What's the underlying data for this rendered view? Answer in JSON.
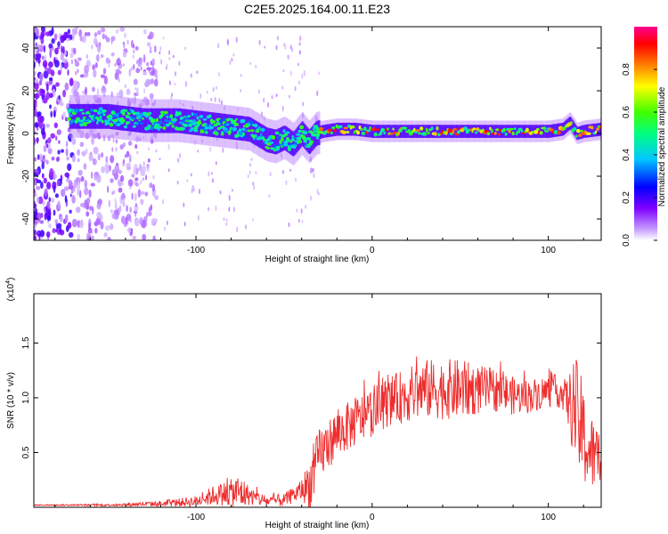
{
  "title": "C2E5.2025.164.00.11.E23",
  "spectrogram": {
    "xlabel": "Height of straight line (km)",
    "ylabel": "Frequency (Hz)",
    "xlim": [
      -192,
      130
    ],
    "ylim": [
      -50,
      50
    ],
    "xticks": [
      -100,
      0,
      100
    ],
    "yticks": [
      -40,
      -20,
      0,
      20,
      40
    ],
    "colorbar": {
      "label": "Normalized spectral amplitude",
      "range": [
        0,
        1
      ],
      "ticks": [
        "0.0",
        "0.2",
        "0.4",
        "0.6",
        "0.8"
      ],
      "colors": [
        "#ffffff",
        "#8000ff",
        "#0000ff",
        "#00ffff",
        "#00ff00",
        "#ffff00",
        "#ff8000",
        "#ff0000",
        "#ff00a0"
      ]
    },
    "ridge": {
      "x": [
        -172,
        -160,
        -150,
        -140,
        -130,
        -120,
        -110,
        -100,
        -90,
        -80,
        -70,
        -60,
        -55,
        -50,
        -45,
        -40,
        -36,
        -32,
        -28,
        -20,
        -10,
        0,
        20,
        40,
        60,
        80,
        100,
        108,
        112,
        116,
        120,
        130
      ],
      "freq": [
        8,
        8,
        8,
        7,
        6,
        6,
        6,
        5,
        4,
        3,
        2,
        -3,
        -4,
        -2,
        -5,
        0,
        -4,
        0,
        1,
        2,
        2,
        1,
        1,
        1,
        1,
        1,
        1,
        2,
        5,
        0,
        1,
        2
      ]
    }
  },
  "snr_chart": {
    "type": "line",
    "ylabel": "SNR (10 * v/v)",
    "multiplier": "(x10",
    "multiplier_exp": "4",
    "xlabel": "Height of straight line (km)",
    "xlim": [
      -192,
      130
    ],
    "ylim": [
      0,
      1.95
    ],
    "xticks": [
      -100,
      0,
      100
    ],
    "yticks": [
      "0.5",
      "1.0",
      "1.5"
    ],
    "color": "#ee2c2c",
    "envelope": {
      "x": [
        -192,
        -150,
        -120,
        -100,
        -90,
        -80,
        -75,
        -70,
        -60,
        -50,
        -45,
        -40,
        -35,
        -33,
        -30,
        -25,
        -20,
        -10,
        0,
        10,
        20,
        30,
        40,
        50,
        60,
        70,
        80,
        90,
        100,
        105,
        110,
        112,
        114,
        116,
        118,
        120,
        122,
        125,
        128,
        130
      ],
      "base": [
        0.02,
        0.02,
        0.03,
        0.05,
        0.1,
        0.12,
        0.12,
        0.1,
        0.05,
        0.06,
        0.1,
        0.15,
        0.2,
        0.3,
        0.45,
        0.55,
        0.65,
        0.75,
        0.85,
        0.95,
        1.0,
        1.05,
        1.05,
        1.05,
        1.05,
        1.05,
        1.0,
        1.0,
        1.05,
        1.05,
        1.0,
        0.9,
        0.9,
        0.8,
        0.7,
        0.6,
        0.5,
        0.45,
        0.4,
        0.45
      ],
      "spread": [
        0.01,
        0.02,
        0.05,
        0.1,
        0.18,
        0.25,
        0.35,
        0.18,
        0.1,
        0.12,
        0.15,
        0.2,
        0.5,
        0.5,
        0.5,
        0.45,
        0.45,
        0.45,
        0.45,
        0.45,
        0.5,
        0.55,
        0.55,
        0.55,
        0.45,
        0.4,
        0.35,
        0.3,
        0.3,
        0.3,
        0.3,
        0.6,
        0.9,
        1.0,
        1.0,
        0.9,
        0.8,
        0.7,
        0.6,
        0.6
      ]
    }
  }
}
